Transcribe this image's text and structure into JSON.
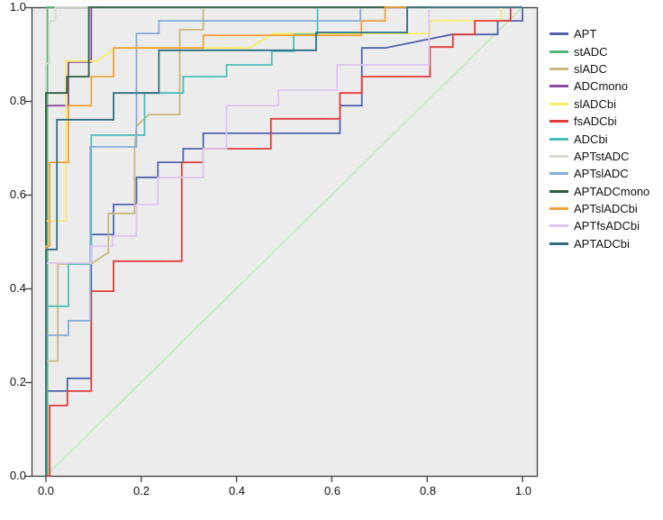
{
  "axes": {
    "x_ticks": [
      "0.0",
      "0.2",
      "0.4",
      "0.6",
      "0.8",
      "1.0"
    ],
    "y_ticks": [
      "0.0",
      "0.2",
      "0.4",
      "0.6",
      "0.8",
      "1.0"
    ]
  },
  "chart_data": {
    "type": "line",
    "subtype": "roc-step-curves",
    "title": "",
    "xlabel": "",
    "ylabel": "",
    "xlim": [
      0,
      1
    ],
    "ylim": [
      0,
      1
    ],
    "grid": false,
    "legend_position": "right",
    "plot_bg": "#ececec",
    "border_color": "#4a4a4a",
    "reference_line": {
      "name": "reference-diagonal",
      "color": "#b9eeb9",
      "from": [
        0,
        0
      ],
      "to": [
        1,
        1
      ]
    },
    "series": [
      {
        "name": "APT",
        "color": "#5263ae",
        "points": [
          [
            0,
            0
          ],
          [
            0,
            0.181
          ],
          [
            0.045,
            0.181
          ],
          [
            0.045,
            0.208
          ],
          [
            0.095,
            0.208
          ],
          [
            0.095,
            0.515
          ],
          [
            0.142,
            0.515
          ],
          [
            0.142,
            0.579
          ],
          [
            0.19,
            0.579
          ],
          [
            0.19,
            0.637
          ],
          [
            0.235,
            0.637
          ],
          [
            0.235,
            0.669
          ],
          [
            0.288,
            0.669
          ],
          [
            0.288,
            0.698
          ],
          [
            0.33,
            0.698
          ],
          [
            0.33,
            0.731
          ],
          [
            0.617,
            0.731
          ],
          [
            0.617,
            0.79
          ],
          [
            0.663,
            0.79
          ],
          [
            0.663,
            0.913
          ],
          [
            0.712,
            0.913
          ],
          [
            0.852,
            0.942
          ],
          [
            0.948,
            0.942
          ],
          [
            0.948,
            0.971
          ],
          [
            1,
            0.971
          ],
          [
            1,
            1
          ]
        ]
      },
      {
        "name": "stADC",
        "color": "#57b576",
        "points": [
          [
            0,
            0
          ],
          [
            0.003,
            0
          ],
          [
            0.003,
            1
          ],
          [
            1,
            1
          ]
        ]
      },
      {
        "name": "slADC",
        "color": "#c6ba7c",
        "points": [
          [
            0,
            0
          ],
          [
            0,
            0.245
          ],
          [
            0.025,
            0.245
          ],
          [
            0.025,
            0.452
          ],
          [
            0.095,
            0.452
          ],
          [
            0.131,
            0.477
          ],
          [
            0.131,
            0.56
          ],
          [
            0.186,
            0.56
          ],
          [
            0.186,
            0.698
          ],
          [
            0.19,
            0.746
          ],
          [
            0.216,
            0.771
          ],
          [
            0.281,
            0.771
          ],
          [
            0.281,
            0.952
          ],
          [
            0.33,
            0.952
          ],
          [
            0.33,
            1
          ],
          [
            1,
            1
          ]
        ]
      },
      {
        "name": "ADCmono",
        "color": "#8a4a9e",
        "points": [
          [
            0,
            0
          ],
          [
            0,
            0.79
          ],
          [
            0.047,
            0.79
          ],
          [
            0.047,
            0.883
          ],
          [
            0.095,
            0.883
          ],
          [
            0.095,
            1
          ],
          [
            1,
            1
          ]
        ]
      },
      {
        "name": "slADCbi",
        "color": "#f3ee6b",
        "points": [
          [
            0,
            0
          ],
          [
            0,
            0.544
          ],
          [
            0.042,
            0.544
          ],
          [
            0.042,
            0.885
          ],
          [
            0.108,
            0.885
          ],
          [
            0.145,
            0.913
          ],
          [
            0.427,
            0.913
          ],
          [
            0.478,
            0.944
          ],
          [
            0.806,
            0.944
          ],
          [
            0.806,
            0.971
          ],
          [
            0.955,
            0.971
          ],
          [
            0.955,
            1
          ],
          [
            1,
            1
          ]
        ]
      },
      {
        "name": "fsADCbi",
        "color": "#e23b3b",
        "points": [
          [
            0,
            0
          ],
          [
            0.008,
            0
          ],
          [
            0.008,
            0.15
          ],
          [
            0.045,
            0.15
          ],
          [
            0.045,
            0.181
          ],
          [
            0.095,
            0.181
          ],
          [
            0.095,
            0.394
          ],
          [
            0.142,
            0.394
          ],
          [
            0.142,
            0.458
          ],
          [
            0.285,
            0.458
          ],
          [
            0.285,
            0.669
          ],
          [
            0.33,
            0.669
          ],
          [
            0.33,
            0.698
          ],
          [
            0.472,
            0.698
          ],
          [
            0.472,
            0.762
          ],
          [
            0.617,
            0.762
          ],
          [
            0.617,
            0.817
          ],
          [
            0.663,
            0.817
          ],
          [
            0.663,
            0.852
          ],
          [
            0.806,
            0.852
          ],
          [
            0.806,
            0.915
          ],
          [
            0.854,
            0.915
          ],
          [
            0.854,
            0.942
          ],
          [
            0.9,
            0.942
          ],
          [
            0.9,
            0.971
          ],
          [
            0.975,
            0.971
          ],
          [
            0.975,
            1
          ],
          [
            1,
            1
          ]
        ]
      },
      {
        "name": "ADCbi",
        "color": "#4cc0b4",
        "points": [
          [
            0,
            0
          ],
          [
            0,
            0.362
          ],
          [
            0.047,
            0.362
          ],
          [
            0.047,
            0.452
          ],
          [
            0.095,
            0.452
          ],
          [
            0.095,
            0.727
          ],
          [
            0.207,
            0.727
          ],
          [
            0.207,
            0.817
          ],
          [
            0.288,
            0.817
          ],
          [
            0.288,
            0.852
          ],
          [
            0.379,
            0.852
          ],
          [
            0.379,
            0.877
          ],
          [
            0.474,
            0.877
          ],
          [
            0.474,
            0.906
          ],
          [
            0.52,
            0.906
          ],
          [
            0.52,
            0.942
          ],
          [
            0.57,
            0.942
          ],
          [
            0.57,
            1
          ],
          [
            1,
            1
          ]
        ]
      },
      {
        "name": "APTstADC",
        "color": "#d9d9d2",
        "points": [
          [
            0,
            0
          ],
          [
            0,
            0.88
          ],
          [
            0.008,
            0.88
          ],
          [
            0.008,
            0.971
          ],
          [
            0.02,
            0.971
          ],
          [
            0.02,
            1
          ],
          [
            1,
            1
          ]
        ]
      },
      {
        "name": "APTslADC",
        "color": "#86abd8",
        "points": [
          [
            0,
            0
          ],
          [
            0,
            0.3
          ],
          [
            0.047,
            0.3
          ],
          [
            0.047,
            0.331
          ],
          [
            0.093,
            0.331
          ],
          [
            0.093,
            0.702
          ],
          [
            0.19,
            0.702
          ],
          [
            0.19,
            0.944
          ],
          [
            0.237,
            0.944
          ],
          [
            0.237,
            0.971
          ],
          [
            0.66,
            0.971
          ],
          [
            0.66,
            1
          ],
          [
            1,
            1
          ]
        ]
      },
      {
        "name": "APTADCmono",
        "color": "#2b5c40",
        "points": [
          [
            0,
            0
          ],
          [
            0,
            0.817
          ],
          [
            0.044,
            0.817
          ],
          [
            0.044,
            0.852
          ],
          [
            0.09,
            0.852
          ],
          [
            0.09,
            1
          ],
          [
            1,
            1
          ]
        ]
      },
      {
        "name": "APTslADCbi",
        "color": "#efa23a",
        "points": [
          [
            0,
            0
          ],
          [
            0,
            0.49
          ],
          [
            0.008,
            0.49
          ],
          [
            0.008,
            0.669
          ],
          [
            0.047,
            0.669
          ],
          [
            0.047,
            0.79
          ],
          [
            0.095,
            0.79
          ],
          [
            0.095,
            0.852
          ],
          [
            0.142,
            0.852
          ],
          [
            0.142,
            0.913
          ],
          [
            0.33,
            0.913
          ],
          [
            0.33,
            0.94
          ],
          [
            0.662,
            0.94
          ],
          [
            0.662,
            0.971
          ],
          [
            0.712,
            0.971
          ],
          [
            0.712,
            1
          ],
          [
            1,
            1
          ]
        ]
      },
      {
        "name": "APTfsADCbi",
        "color": "#dcc6ec",
        "points": [
          [
            0,
            0
          ],
          [
            0,
            0.454
          ],
          [
            0.095,
            0.454
          ],
          [
            0.095,
            0.49
          ],
          [
            0.14,
            0.49
          ],
          [
            0.14,
            0.512
          ],
          [
            0.19,
            0.512
          ],
          [
            0.19,
            0.579
          ],
          [
            0.235,
            0.579
          ],
          [
            0.235,
            0.637
          ],
          [
            0.33,
            0.637
          ],
          [
            0.33,
            0.698
          ],
          [
            0.379,
            0.698
          ],
          [
            0.379,
            0.79
          ],
          [
            0.488,
            0.79
          ],
          [
            0.488,
            0.823
          ],
          [
            0.611,
            0.823
          ],
          [
            0.611,
            0.877
          ],
          [
            0.804,
            0.877
          ],
          [
            0.804,
            1
          ],
          [
            1,
            1
          ]
        ]
      },
      {
        "name": "APTADCbi",
        "color": "#2f6f7e",
        "points": [
          [
            0,
            0
          ],
          [
            0,
            0.483
          ],
          [
            0.023,
            0.483
          ],
          [
            0.023,
            0.76
          ],
          [
            0.142,
            0.76
          ],
          [
            0.142,
            0.817
          ],
          [
            0.237,
            0.817
          ],
          [
            0.237,
            0.908
          ],
          [
            0.567,
            0.908
          ],
          [
            0.567,
            0.946
          ],
          [
            0.758,
            0.946
          ],
          [
            0.758,
            1
          ],
          [
            1,
            1
          ]
        ]
      }
    ]
  }
}
